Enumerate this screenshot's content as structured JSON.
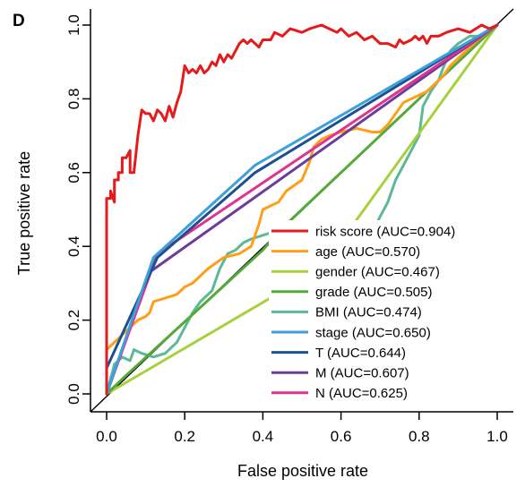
{
  "panel_label": "D",
  "chart_data": {
    "type": "line",
    "title": "",
    "xlabel": "False positive rate",
    "ylabel": "True positive rate",
    "xlim": [
      0,
      1
    ],
    "ylim": [
      0,
      1
    ],
    "xticks": [
      "0.0",
      "0.2",
      "0.4",
      "0.6",
      "0.8",
      "1.0"
    ],
    "yticks": [
      "0.0",
      "0.2",
      "0.4",
      "0.6",
      "0.8",
      "1.0"
    ],
    "grid": false,
    "legend_position": "bottom-right",
    "diagonal_reference": true,
    "series": [
      {
        "name": "risk score (AUC=0.904)",
        "color": "#e41a1c",
        "points": [
          [
            0,
            0
          ],
          [
            0,
            0.53
          ],
          [
            0.01,
            0.53
          ],
          [
            0.01,
            0.55
          ],
          [
            0.02,
            0.52
          ],
          [
            0.02,
            0.58
          ],
          [
            0.03,
            0.58
          ],
          [
            0.03,
            0.6
          ],
          [
            0.04,
            0.6
          ],
          [
            0.04,
            0.64
          ],
          [
            0.05,
            0.64
          ],
          [
            0.06,
            0.66
          ],
          [
            0.06,
            0.6
          ],
          [
            0.07,
            0.6
          ],
          [
            0.08,
            0.7
          ],
          [
            0.09,
            0.77
          ],
          [
            0.1,
            0.76
          ],
          [
            0.11,
            0.76
          ],
          [
            0.12,
            0.74
          ],
          [
            0.13,
            0.77
          ],
          [
            0.14,
            0.76
          ],
          [
            0.15,
            0.74
          ],
          [
            0.16,
            0.78
          ],
          [
            0.17,
            0.75
          ],
          [
            0.18,
            0.79
          ],
          [
            0.19,
            0.82
          ],
          [
            0.2,
            0.89
          ],
          [
            0.21,
            0.87
          ],
          [
            0.22,
            0.88
          ],
          [
            0.23,
            0.87
          ],
          [
            0.24,
            0.89
          ],
          [
            0.25,
            0.87
          ],
          [
            0.26,
            0.88
          ],
          [
            0.27,
            0.9
          ],
          [
            0.28,
            0.89
          ],
          [
            0.29,
            0.92
          ],
          [
            0.3,
            0.9
          ],
          [
            0.31,
            0.92
          ],
          [
            0.32,
            0.91
          ],
          [
            0.33,
            0.93
          ],
          [
            0.34,
            0.95
          ],
          [
            0.35,
            0.96
          ],
          [
            0.36,
            0.95
          ],
          [
            0.37,
            0.96
          ],
          [
            0.38,
            0.95
          ],
          [
            0.39,
            0.94
          ],
          [
            0.4,
            0.96
          ],
          [
            0.42,
            0.96
          ],
          [
            0.43,
            0.98
          ],
          [
            0.45,
            0.97
          ],
          [
            0.47,
            0.99
          ],
          [
            0.5,
            0.98
          ],
          [
            0.52,
            0.99
          ],
          [
            0.55,
            1.0
          ],
          [
            0.57,
            0.99
          ],
          [
            0.59,
            0.98
          ],
          [
            0.6,
            0.99
          ],
          [
            0.62,
            0.97
          ],
          [
            0.64,
            0.98
          ],
          [
            0.66,
            0.96
          ],
          [
            0.68,
            0.97
          ],
          [
            0.7,
            0.95
          ],
          [
            0.72,
            0.95
          ],
          [
            0.74,
            0.94
          ],
          [
            0.75,
            0.96
          ],
          [
            0.76,
            0.95
          ],
          [
            0.78,
            0.96
          ],
          [
            0.79,
            0.97
          ],
          [
            0.8,
            0.96
          ],
          [
            0.81,
            0.97
          ],
          [
            0.82,
            0.95
          ],
          [
            0.83,
            0.97
          ],
          [
            0.85,
            0.97
          ],
          [
            0.87,
            0.98
          ],
          [
            0.9,
            0.99
          ],
          [
            0.93,
            0.98
          ],
          [
            0.96,
            1.0
          ],
          [
            0.98,
            0.99
          ],
          [
            1,
            1
          ]
        ]
      },
      {
        "name": "age (AUC=0.570)",
        "color": "#ff9e18",
        "points": [
          [
            0,
            0
          ],
          [
            0,
            0.12
          ],
          [
            0.03,
            0.15
          ],
          [
            0.06,
            0.18
          ],
          [
            0.08,
            0.2
          ],
          [
            0.1,
            0.21
          ],
          [
            0.11,
            0.22
          ],
          [
            0.12,
            0.25
          ],
          [
            0.15,
            0.26
          ],
          [
            0.18,
            0.27
          ],
          [
            0.2,
            0.29
          ],
          [
            0.22,
            0.3
          ],
          [
            0.26,
            0.34
          ],
          [
            0.3,
            0.37
          ],
          [
            0.34,
            0.38
          ],
          [
            0.37,
            0.4
          ],
          [
            0.38,
            0.43
          ],
          [
            0.39,
            0.46
          ],
          [
            0.4,
            0.5
          ],
          [
            0.44,
            0.52
          ],
          [
            0.46,
            0.55
          ],
          [
            0.5,
            0.58
          ],
          [
            0.52,
            0.63
          ],
          [
            0.53,
            0.67
          ],
          [
            0.55,
            0.69
          ],
          [
            0.57,
            0.7
          ],
          [
            0.6,
            0.71
          ],
          [
            0.64,
            0.72
          ],
          [
            0.68,
            0.71
          ],
          [
            0.7,
            0.71
          ],
          [
            0.72,
            0.73
          ],
          [
            0.74,
            0.76
          ],
          [
            0.76,
            0.79
          ],
          [
            0.78,
            0.8
          ],
          [
            0.82,
            0.82
          ],
          [
            0.86,
            0.86
          ],
          [
            0.88,
            0.89
          ],
          [
            0.92,
            0.93
          ],
          [
            0.95,
            0.96
          ],
          [
            1,
            1
          ]
        ]
      },
      {
        "name": "gender (AUC=0.467)",
        "color": "#a6d13c",
        "points": [
          [
            0,
            0
          ],
          [
            0.5,
            0.31
          ],
          [
            0.55,
            0.34
          ],
          [
            1,
            1
          ]
        ]
      },
      {
        "name": "grade (AUC=0.505)",
        "color": "#55a93a",
        "points": [
          [
            0,
            0
          ],
          [
            0.05,
            0.05
          ],
          [
            0.4,
            0.39
          ],
          [
            0.45,
            0.45
          ],
          [
            1,
            1
          ]
        ]
      },
      {
        "name": "BMI (AUC=0.474)",
        "color": "#5cb895",
        "points": [
          [
            0,
            0
          ],
          [
            0.02,
            0.08
          ],
          [
            0.04,
            0.1
          ],
          [
            0.06,
            0.09
          ],
          [
            0.07,
            0.12
          ],
          [
            0.09,
            0.11
          ],
          [
            0.12,
            0.1
          ],
          [
            0.15,
            0.11
          ],
          [
            0.18,
            0.14
          ],
          [
            0.2,
            0.18
          ],
          [
            0.22,
            0.22
          ],
          [
            0.24,
            0.25
          ],
          [
            0.27,
            0.28
          ],
          [
            0.29,
            0.34
          ],
          [
            0.31,
            0.38
          ],
          [
            0.33,
            0.39
          ],
          [
            0.35,
            0.41
          ],
          [
            0.37,
            0.42
          ],
          [
            0.4,
            0.43
          ],
          [
            0.43,
            0.44
          ],
          [
            0.46,
            0.46
          ],
          [
            0.5,
            0.45
          ],
          [
            0.52,
            0.44
          ],
          [
            0.54,
            0.43
          ],
          [
            0.56,
            0.41
          ],
          [
            0.58,
            0.4
          ],
          [
            0.6,
            0.39
          ],
          [
            0.62,
            0.37
          ],
          [
            0.64,
            0.38
          ],
          [
            0.66,
            0.4
          ],
          [
            0.68,
            0.44
          ],
          [
            0.7,
            0.48
          ],
          [
            0.72,
            0.52
          ],
          [
            0.74,
            0.58
          ],
          [
            0.76,
            0.62
          ],
          [
            0.78,
            0.66
          ],
          [
            0.8,
            0.7
          ],
          [
            0.81,
            0.78
          ],
          [
            0.83,
            0.82
          ],
          [
            0.85,
            0.85
          ],
          [
            0.86,
            0.88
          ],
          [
            0.88,
            0.93
          ],
          [
            0.9,
            0.95
          ],
          [
            0.93,
            0.97
          ],
          [
            0.96,
            0.97
          ],
          [
            1,
            1
          ]
        ]
      },
      {
        "name": "stage (AUC=0.650)",
        "color": "#3ea0db",
        "points": [
          [
            0,
            0
          ],
          [
            0.12,
            0.37
          ],
          [
            0.38,
            0.62
          ],
          [
            1,
            1
          ]
        ]
      },
      {
        "name": "T (AUC=0.644)",
        "color": "#1d4f91",
        "points": [
          [
            0,
            0
          ],
          [
            0,
            0.07
          ],
          [
            0.13,
            0.37
          ],
          [
            0.38,
            0.6
          ],
          [
            1,
            1
          ]
        ]
      },
      {
        "name": "M (AUC=0.607)",
        "color": "#6c3c99",
        "points": [
          [
            0,
            0
          ],
          [
            0.11,
            0.33
          ],
          [
            1,
            1
          ]
        ]
      },
      {
        "name": "N (AUC=0.625)",
        "color": "#e0338f",
        "points": [
          [
            0,
            0
          ],
          [
            0.13,
            0.38
          ],
          [
            1,
            1
          ]
        ]
      }
    ]
  }
}
